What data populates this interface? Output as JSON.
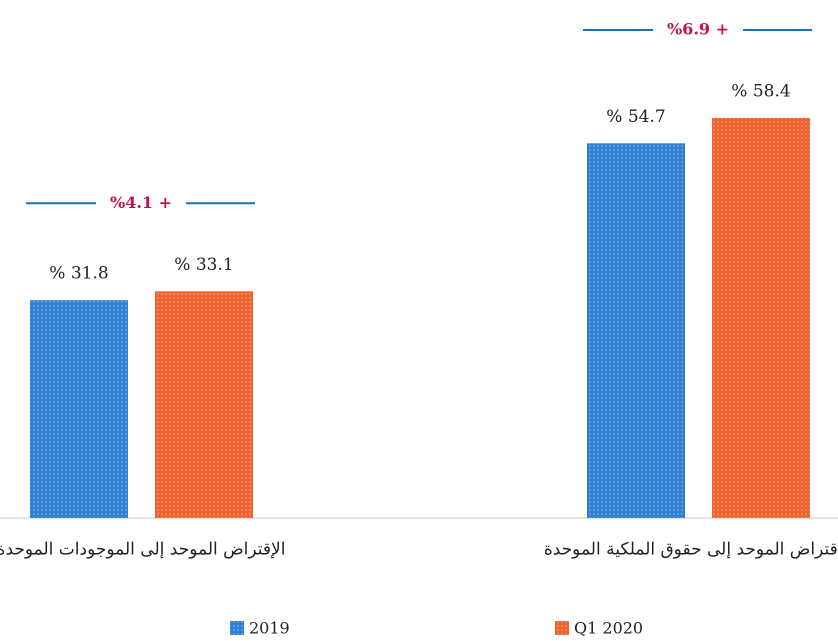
{
  "chart_data": {
    "type": "bar",
    "categories": [
      "الإقتراض الموحد إلى الموجودات الموحدة",
      "الإقتراض الموحد إلى حقوق الملكية الموحدة"
    ],
    "series": [
      {
        "name": "2019",
        "color": "#2f80d3",
        "values": [
          31.8,
          54.7
        ],
        "value_labels": [
          "% 31.8",
          "% 54.7"
        ]
      },
      {
        "name": "Q1 2020",
        "color": "#f0622e",
        "values": [
          33.1,
          58.4
        ],
        "value_labels": [
          "% 33.1",
          "% 58.4"
        ]
      }
    ],
    "annotations": [
      "%4.1 +",
      "%6.9 +"
    ]
  }
}
